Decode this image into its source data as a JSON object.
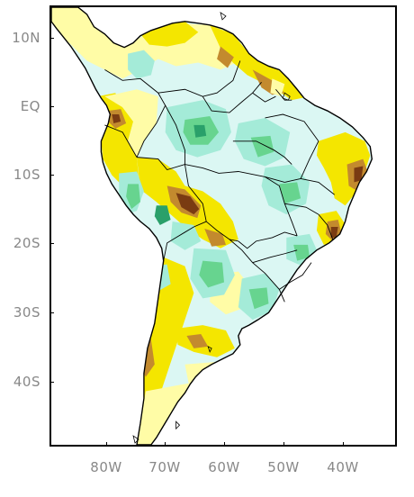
{
  "map": {
    "lat_ticks": [
      "10N",
      "EQ",
      "10S",
      "20S",
      "30S",
      "40S"
    ],
    "lon_ticks": [
      "80W",
      "70W",
      "60W",
      "50W",
      "40W"
    ],
    "colors": {
      "frame": "#000000",
      "ocean": "#ffffff",
      "coast": "#000000",
      "border": "#000000",
      "dark_brown": "#7a3b12",
      "brown": "#c38a2e",
      "yellow": "#f4e600",
      "light_yellow": "#fffca6",
      "light_cyan": "#dbf7f3",
      "cyan": "#a4ebd8",
      "green": "#67d48f",
      "dark_green": "#2aa06a",
      "label_gray": "#888888"
    }
  }
}
